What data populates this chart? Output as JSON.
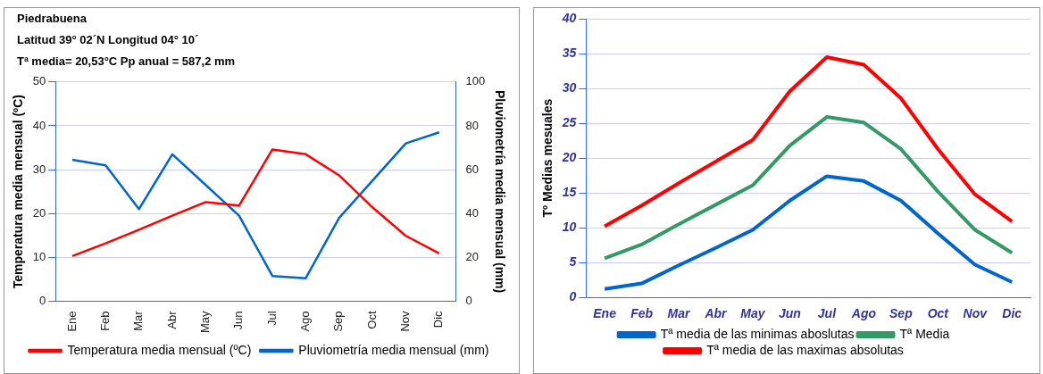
{
  "chart_data": [
    {
      "type": "line",
      "title": "Piedrabuena",
      "subtitle": "Latitud 39° 02´N Longitud 04° 10´",
      "annotations": [
        "Tª media= 20,53°C  Pp anual = 587,2 mm"
      ],
      "categories": [
        "Ene",
        "Feb",
        "Mar",
        "Abr",
        "May",
        "Jun",
        "Jul",
        "Ago",
        "Sep",
        "Oct",
        "Nov",
        "Dic"
      ],
      "series": [
        {
          "name": "Temperatura media mensual (ºC)",
          "color": "#ff0000",
          "values": [
            10.3,
            13.2,
            16.3,
            19.5,
            22.6,
            21.8,
            34.6,
            33.5,
            28.7,
            21.4,
            14.9,
            10.9
          ]
        },
        {
          "name": "Pluviometría media mensual (mm)",
          "color": "#0066cc",
          "axis": "y2",
          "values": [
            64.5,
            62,
            42,
            67,
            53,
            39,
            11.5,
            10.5,
            38,
            55,
            72,
            77
          ]
        }
      ],
      "ylabel": "Temperatura media mensual (ºC)",
      "y2label": "Pluviometría media mensual (mm)",
      "ylim": [
        0,
        50
      ],
      "yticks": [
        0,
        10,
        20,
        30,
        40,
        50
      ],
      "y2lim": [
        0,
        100
      ],
      "y2ticks": [
        0,
        20,
        40,
        60,
        80,
        100
      ],
      "grid": "y",
      "legend": "bottom",
      "marker": "none"
    },
    {
      "type": "line",
      "categories": [
        "Ene",
        "Feb",
        "Mar",
        "Abr",
        "May",
        "Jun",
        "Jul",
        "Ago",
        "Sep",
        "Oct",
        "Nov",
        "Dic"
      ],
      "series": [
        {
          "name": "Tª media de las minimas aboslutas",
          "color": "#0066cc",
          "values": [
            1.2,
            2.0,
            4.6,
            7.1,
            9.7,
            13.9,
            17.4,
            16.7,
            13.9,
            9.2,
            4.7,
            2.2
          ]
        },
        {
          "name": "Tª Media",
          "color": "#339966",
          "values": [
            5.6,
            7.6,
            10.5,
            13.3,
            16.1,
            21.8,
            25.9,
            25.1,
            21.3,
            15.2,
            9.7,
            6.4
          ]
        },
        {
          "name": "Tª media de las maximas absolutas",
          "color": "#ff0000",
          "values": [
            10.2,
            13.2,
            16.4,
            19.5,
            22.6,
            29.6,
            34.5,
            33.4,
            28.6,
            21.3,
            14.8,
            10.9
          ]
        }
      ],
      "ylabel": "Tº Medias mesuales",
      "ylim": [
        0,
        40
      ],
      "yticks": [
        0,
        5,
        10,
        15,
        20,
        25,
        30,
        35,
        40
      ],
      "grid": "y",
      "legend": "bottom",
      "marker": "none"
    }
  ]
}
